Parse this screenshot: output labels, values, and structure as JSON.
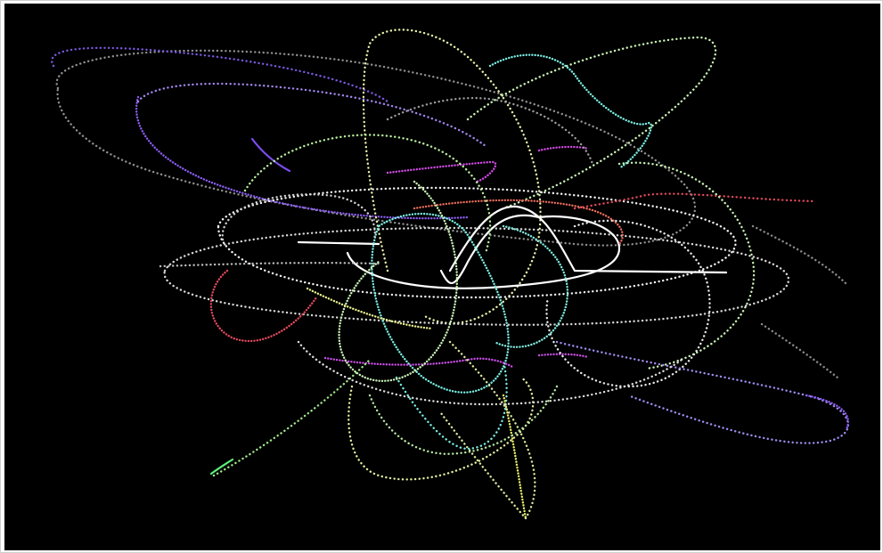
{
  "scene": {
    "background": "#000000",
    "frame_border": "#cfcfcf",
    "trail_colors": {
      "white": "#f4f4f4",
      "pale_yellow": "#e9f0a8",
      "pale_green": "#c9f2b6",
      "cyan": "#79ece0",
      "purple": "#8a5cf0",
      "violet": "#b46cf5",
      "magenta": "#d24ae6",
      "red": "#e0495a",
      "orange_red": "#f06a4a",
      "green": "#5cf07a",
      "yellow": "#eef266",
      "gray": "#9a9a9a"
    }
  }
}
